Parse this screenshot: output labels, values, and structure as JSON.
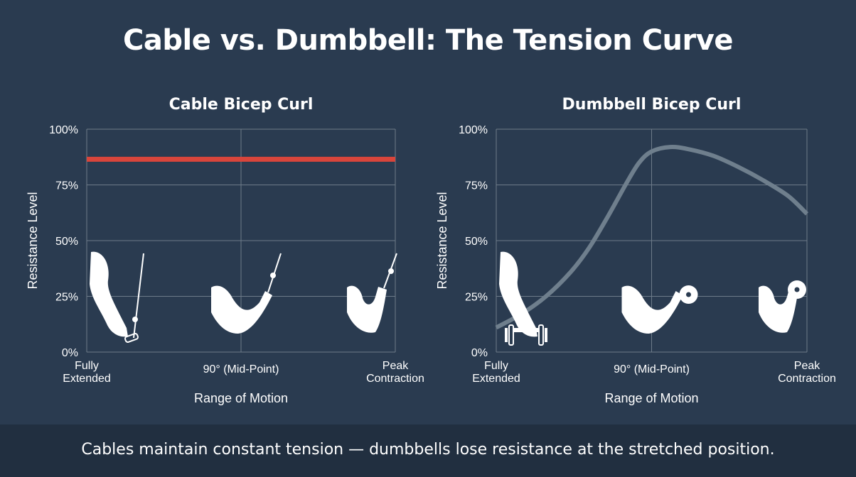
{
  "title": "Cable vs. Dumbbell: The Tension Curve",
  "footer": "Cables maintain constant tension — dumbbells lose resistance at the stretched position.",
  "colors": {
    "background": "#2a3b50",
    "footer_background": "#212f40",
    "cable_line": "#d9453b",
    "dumbbell_line": "#6f7f8d",
    "grid": "#6d7b89",
    "text": "#ffffff"
  },
  "chart_data": [
    {
      "type": "line",
      "title": "Cable Bicep Curl",
      "xlabel": "Range of Motion",
      "ylabel": "Resistance Level",
      "categories": [
        "Fully\nExtended",
        "90° (Mid-Point)",
        "Peak\nContraction"
      ],
      "yticks": [
        "0%",
        "25%",
        "50%",
        "75%",
        "100%"
      ],
      "ylim": [
        0,
        100
      ],
      "xlim": [
        0,
        1
      ],
      "grid": true,
      "series": [
        {
          "color": "#d9453b",
          "x": [
            0,
            0.5,
            1
          ],
          "y": [
            86.5,
            86.5,
            86.5
          ]
        }
      ],
      "icons": [
        "arm-extended-cable-icon",
        "arm-mid-cable-icon",
        "arm-peak-cable-icon"
      ]
    },
    {
      "type": "line",
      "title": "Dumbbell Bicep Curl",
      "xlabel": "Range of Motion",
      "ylabel": "Resistance Level",
      "categories": [
        "Fully\nExtended",
        "90° (Mid-Point)",
        "Peak\nContraction"
      ],
      "yticks": [
        "0%",
        "25%",
        "50%",
        "75%",
        "100%"
      ],
      "ylim": [
        0,
        100
      ],
      "xlim": [
        0,
        1
      ],
      "grid": true,
      "series": [
        {
          "color": "#6f7f8d",
          "x": [
            0,
            0.08,
            0.16,
            0.24,
            0.3,
            0.36,
            0.42,
            0.46,
            0.5,
            0.56,
            0.62,
            0.7,
            0.78,
            0.86,
            0.94,
            1.0
          ],
          "y": [
            11,
            17,
            25,
            36,
            47,
            61,
            76,
            85,
            90,
            92,
            91,
            88,
            83,
            77,
            70,
            62
          ]
        }
      ],
      "icons": [
        "arm-extended-dumbbell-icon",
        "arm-mid-dumbbell-icon",
        "arm-peak-dumbbell-icon"
      ]
    }
  ]
}
